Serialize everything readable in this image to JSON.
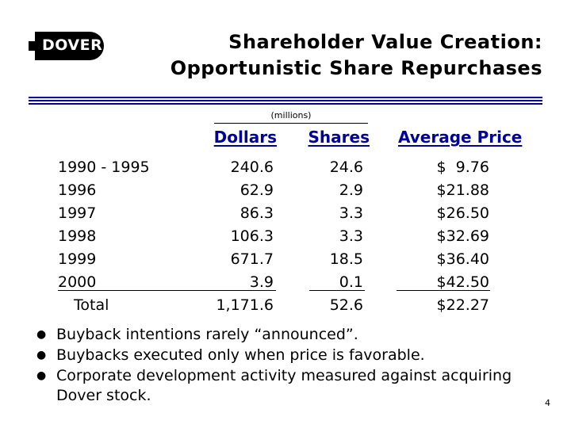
{
  "logo": {
    "text": "DOVER"
  },
  "title": {
    "line1": "Shareholder Value Creation:",
    "line2": "Opportunistic Share Repurchases"
  },
  "colors": {
    "accent": "#00009a"
  },
  "table": {
    "unit_note": "(millions)",
    "headers": {
      "dollars": "Dollars",
      "shares": "Shares",
      "price": "Average Price"
    },
    "rows": [
      {
        "label": "1990 - 1995",
        "dollars": "240.6",
        "shares": "24.6",
        "price": "$  9.76"
      },
      {
        "label": "1996",
        "dollars": "62.9",
        "shares": "2.9",
        "price": "$21.88"
      },
      {
        "label": "1997",
        "dollars": "86.3",
        "shares": "3.3",
        "price": "$26.50"
      },
      {
        "label": "1998",
        "dollars": "106.3",
        "shares": "3.3",
        "price": "$32.69"
      },
      {
        "label": "1999",
        "dollars": "671.7",
        "shares": "18.5",
        "price": "$36.40"
      },
      {
        "label": "2000",
        "dollars": "3.9",
        "shares": "0.1",
        "price": "$42.50"
      }
    ],
    "total": {
      "label": "Total",
      "dollars": "1,171.6",
      "shares": "52.6",
      "price": "$22.27"
    }
  },
  "bullets": [
    "Buyback intentions rarely “announced”.",
    "Buybacks executed only when price is favorable.",
    "Corporate development activity measured against acquiring Dover stock."
  ],
  "page_number": "4"
}
